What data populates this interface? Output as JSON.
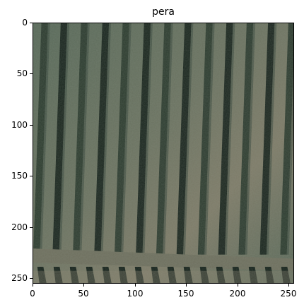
{
  "figure": {
    "title": "pera",
    "image_extent": {
      "x": [
        0,
        256
      ],
      "y": [
        256,
        0
      ]
    },
    "x_ticks": [
      "0",
      "50",
      "100",
      "150",
      "200",
      "250"
    ],
    "y_ticks": [
      "0",
      "50",
      "100",
      "150",
      "200",
      "250"
    ],
    "photo": {
      "subject": "aerial view of parallel dark rows over a grey-green field",
      "colors": {
        "ground": "#5e6b5d",
        "ground_warm": "#8a8470",
        "row_dark": "#17231c",
        "row_mid": "#2a3a2e",
        "bottom_strip": "#6f705f"
      }
    }
  }
}
